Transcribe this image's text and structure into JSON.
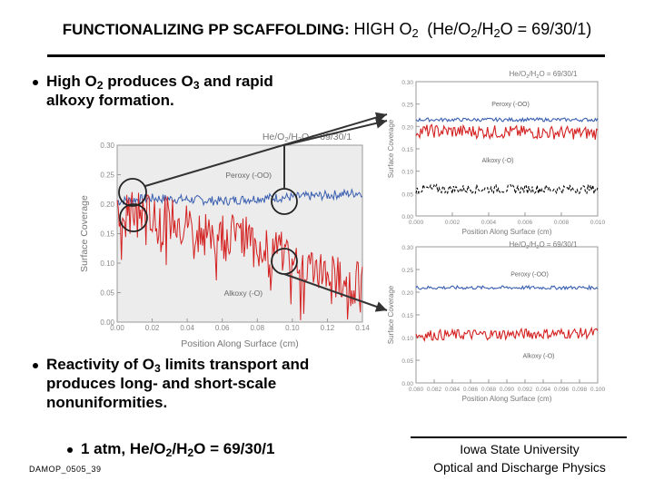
{
  "title": {
    "main": "FUNCTIONALIZING PP SCAFFOLDING:",
    "high": "HIGH O",
    "high_sub": "2",
    "ratio_prefix": "(He/O",
    "ratio_sub1": "2",
    "ratio_mid": "/H",
    "ratio_sub2": "2",
    "ratio_suffix": "O = 69/30/1)"
  },
  "bullets": [
    {
      "line1_a": "High O",
      "line1_sub1": "2",
      "line1_b": " produces O",
      "line1_sub2": "3",
      "line1_c": " and rapid",
      "line2": "alkoxy formation."
    },
    {
      "line1_a": "Reactivity of O",
      "line1_sub1": "3",
      "line1_b": " limits transport and",
      "line2": "produces long- and short-scale",
      "line3": "nonuniformities."
    }
  ],
  "sub_bullet": {
    "a": "1 atm, He/O",
    "sub1": "2",
    "b": "/H",
    "sub2": "2",
    "c": "O = 69/30/1"
  },
  "slide_code": "DAMOP_0505_39",
  "footer": {
    "line1": "Iowa State University",
    "line2": "Optical and Discharge Physics"
  },
  "colors": {
    "peroxy": "#3a5fb0",
    "alkoxy": "#d42020",
    "alkoxy_dark": "#000000"
  },
  "chart_data": [
    {
      "type": "line",
      "name": "main",
      "title": "He/O2/H2O = 69/30/1",
      "xlabel": "Position Along Surface (cm)",
      "ylabel": "Surface Coverage",
      "xlim": [
        0,
        0.14
      ],
      "ylim": [
        0,
        0.3
      ],
      "xticks": [
        "0.00",
        "0.02",
        "0.04",
        "0.06",
        "0.08",
        "0.10",
        "0.12",
        "0.14"
      ],
      "yticks": [
        "0.00",
        "0.05",
        "0.10",
        "0.15",
        "0.20",
        "0.25",
        "0.30"
      ],
      "series": [
        {
          "name": "Peroxy (-OO)",
          "color": "#3a5fb0",
          "points": [
            [
              0,
              0.205
            ],
            [
              0.02,
              0.21
            ],
            [
              0.04,
              0.208
            ],
            [
              0.06,
              0.205
            ],
            [
              0.08,
              0.21
            ],
            [
              0.1,
              0.212
            ],
            [
              0.12,
              0.215
            ],
            [
              0.14,
              0.22
            ]
          ],
          "noise": 0.008
        },
        {
          "name": "Alkoxy (-O)",
          "color": "#d42020",
          "points": [
            [
              0,
              0.19
            ],
            [
              0.02,
              0.185
            ],
            [
              0.04,
              0.17
            ],
            [
              0.06,
              0.155
            ],
            [
              0.08,
              0.14
            ],
            [
              0.1,
              0.11
            ],
            [
              0.12,
              0.085
            ],
            [
              0.14,
              0.065
            ]
          ],
          "noise": 0.035
        }
      ],
      "labels": [
        {
          "text": "Peroxy (-OO)",
          "x": 0.075,
          "y": 0.245
        },
        {
          "text": "Alkoxy (-O)",
          "x": 0.072,
          "y": 0.045
        }
      ]
    },
    {
      "type": "line",
      "name": "zoom-top",
      "title": "He/O2/H2O = 69/30/1",
      "xlabel": "Position Along Surface (cm)",
      "ylabel": "Surface Coverage",
      "xlim": [
        0,
        0.01
      ],
      "ylim": [
        0,
        0.3
      ],
      "xticks": [
        "0.000",
        "0.002",
        "0.004",
        "0.006",
        "0.008",
        "0.010"
      ],
      "yticks": [
        "0.00",
        "0.05",
        "0.10",
        "0.15",
        "0.20",
        "0.25",
        "0.30"
      ],
      "series": [
        {
          "name": "Peroxy (-OO)",
          "color": "#3a5fb0",
          "points": [
            [
              0,
              0.215
            ],
            [
              0.01,
              0.215
            ]
          ],
          "noise": 0.004
        },
        {
          "name": "Alkoxy (-O)",
          "color": "#d42020",
          "points": [
            [
              0,
              0.19
            ],
            [
              0.01,
              0.185
            ]
          ],
          "noise": 0.015
        },
        {
          "name": "Alkoxy (-O) dashed",
          "color": "#000000",
          "points": [
            [
              0,
              0.06
            ],
            [
              0.01,
              0.06
            ]
          ],
          "noise": 0.01
        }
      ],
      "labels": [
        {
          "text": "Peroxy (-OO)",
          "x": 0.0052,
          "y": 0.245
        },
        {
          "text": "Alkoxy (-O)",
          "x": 0.0045,
          "y": 0.12
        }
      ]
    },
    {
      "type": "line",
      "name": "zoom-bottom",
      "title": "He/O2/H2O = 69/30/1",
      "xlabel": "Position Along Surface (cm)",
      "ylabel": "Surface Coverage",
      "xlim": [
        0.08,
        0.1
      ],
      "ylim": [
        0,
        0.3
      ],
      "xticks": [
        "0.080",
        "0.082",
        "0.084",
        "0.086",
        "0.088",
        "0.090",
        "0.092",
        "0.094",
        "0.096",
        "0.098",
        "0.100"
      ],
      "yticks": [
        "0.00",
        "0.05",
        "0.10",
        "0.15",
        "0.20",
        "0.25",
        "0.30"
      ],
      "series": [
        {
          "name": "Peroxy (-OO)",
          "color": "#3a5fb0",
          "points": [
            [
              0.08,
              0.21
            ],
            [
              0.1,
              0.21
            ]
          ],
          "noise": 0.004
        },
        {
          "name": "Alkoxy (-O)",
          "color": "#d42020",
          "points": [
            [
              0.08,
              0.105
            ],
            [
              0.1,
              0.11
            ]
          ],
          "noise": 0.012
        }
      ],
      "labels": [
        {
          "text": "Peroxy (-OO)",
          "x": 0.0925,
          "y": 0.235
        },
        {
          "text": "Alkoxy (-O)",
          "x": 0.0935,
          "y": 0.055
        }
      ]
    }
  ]
}
